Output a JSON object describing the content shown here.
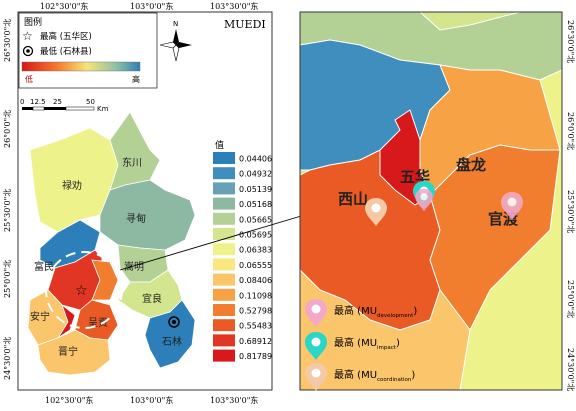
{
  "left_map": {
    "title": "MUEDI",
    "legend_title": "图例",
    "highest_label": "最高 (五华区)",
    "lowest_label": "最低 (石林县)",
    "ramp_low": "低",
    "ramp_high": "高",
    "scale": {
      "zero": "0",
      "t1": "12.5",
      "t2": "25",
      "t3": "50",
      "unit": "Km"
    },
    "north": "N",
    "coords_top": [
      "102°30'0\"东",
      "103°0'0\"东",
      "103°30'0\"东"
    ],
    "coords_bottom": [
      "102°30'0\"东",
      "103°0'0\"东",
      "103°30'0\"东"
    ],
    "coords_left": [
      "26°30'0\"北",
      "26°0'0\"北",
      "25°30'0\"北",
      "25°0'0\"北",
      "24°30'0\"北"
    ],
    "districts": [
      "禄劝",
      "东川",
      "寻甸",
      "富民",
      "嵩明",
      "安宁",
      "呈贡",
      "宜良",
      "晋宁",
      "石林"
    ],
    "value_title": "值",
    "values": [
      {
        "label": "0.04406",
        "color": "#2c7fb8"
      },
      {
        "label": "0.04932",
        "color": "#3f8ebd"
      },
      {
        "label": "0.05139",
        "color": "#6aa0b5"
      },
      {
        "label": "0.05168",
        "color": "#8db8a2"
      },
      {
        "label": "0.05665",
        "color": "#b3d095"
      },
      {
        "label": "0.05695",
        "color": "#d3e58e"
      },
      {
        "label": "0.06383",
        "color": "#eef28a"
      },
      {
        "label": "0.06555",
        "color": "#fbe77f"
      },
      {
        "label": "0.08406",
        "color": "#fbc56b"
      },
      {
        "label": "0.11098",
        "color": "#f7a345"
      },
      {
        "label": "0.52798",
        "color": "#f17e2e"
      },
      {
        "label": "0.55483",
        "color": "#ea5a24"
      },
      {
        "label": "0.68912",
        "color": "#e03623"
      },
      {
        "label": "0.81789",
        "color": "#d7191c"
      }
    ]
  },
  "right_map": {
    "districts": [
      "五华",
      "盘龙",
      "西山",
      "官渡"
    ],
    "coords_right": [
      "26°30'0\"北",
      "26°0'0\"北",
      "25°30'0\"北",
      "25°0'0\"北",
      "24°30'0\"北"
    ],
    "legend": {
      "development": {
        "prefix": "最高 (MU",
        "sub": "development",
        "suffix": ")"
      },
      "impact": {
        "prefix": "最高 (MU",
        "sub": "impact",
        "suffix": ")"
      },
      "coordination": {
        "prefix": "最高 (MU",
        "sub": "coordination",
        "suffix": ")"
      }
    }
  },
  "colors": {
    "frame": "#333333",
    "pin_development": "#f2a8c8",
    "pin_impact": "#29d6c8",
    "pin_coordination": "#f4c9a6"
  }
}
